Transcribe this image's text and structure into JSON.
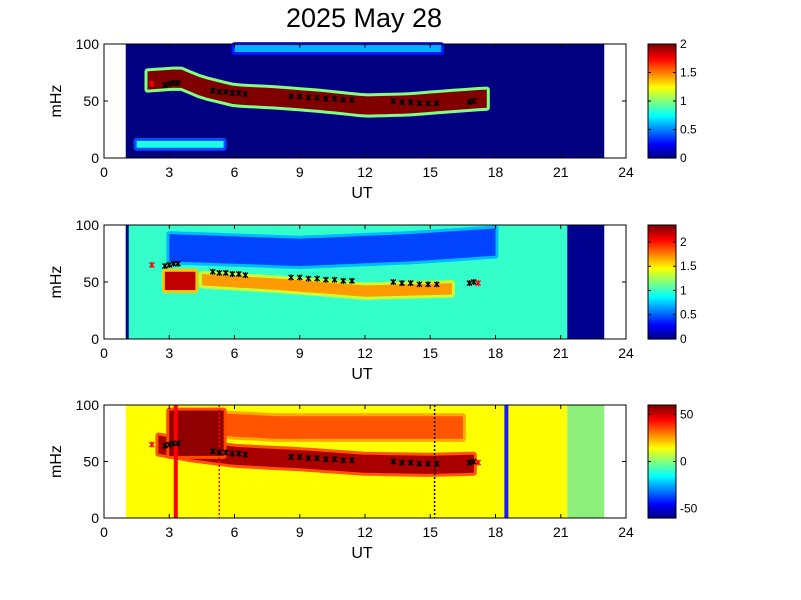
{
  "figure": {
    "title": "2025 May 28"
  },
  "colors": {
    "navy": "#00008f",
    "black_marker": "#000000",
    "red_marker": "#ff0000",
    "red_line": "#ff0000",
    "blue_line": "#1a1aff",
    "flat_green": "#8cf07a"
  },
  "chart_data": [
    {
      "type": "heatmap",
      "panel": 1,
      "xlabel": "UT",
      "ylabel": "mHz",
      "xlim": [
        0,
        24
      ],
      "ylim": [
        0,
        100
      ],
      "x_ticks": [
        0,
        3,
        6,
        9,
        12,
        15,
        18,
        21,
        24
      ],
      "y_ticks": [
        0,
        50,
        100
      ],
      "data_time_range": [
        1.0,
        23.0
      ],
      "colorbar": {
        "range": [
          0,
          2
        ],
        "ticks": [
          0,
          0.5,
          1,
          1.5,
          2
        ],
        "tick_labels": [
          "0",
          "0.5",
          "1",
          "1.5",
          "2"
        ],
        "colormap": "jet"
      },
      "background_value": 0,
      "features": [
        {
          "desc": "main band",
          "time_range": [
            2.0,
            17.6
          ],
          "freq_path": [
            [
              2.0,
              68
            ],
            [
              3.5,
              70
            ],
            [
              4.5,
              62
            ],
            [
              6.0,
              55
            ],
            [
              8.0,
              53
            ],
            [
              10.0,
              50
            ],
            [
              12.0,
              46
            ],
            [
              14.0,
              47
            ],
            [
              16.0,
              50
            ],
            [
              17.5,
              52
            ]
          ],
          "half_width_mHz": 8,
          "value": 2.0
        },
        {
          "desc": "top-edge patch",
          "time_range": [
            6.0,
            15.5
          ],
          "freq_path": [
            [
              6.0,
              96
            ],
            [
              15.5,
              96
            ]
          ],
          "half_width_mHz": 3,
          "value": 0.6
        },
        {
          "desc": "low patch",
          "time_range": [
            1.5,
            5.5
          ],
          "freq_path": [
            [
              1.5,
              12
            ],
            [
              5.5,
              12
            ]
          ],
          "half_width_mHz": 3,
          "value": 0.8
        }
      ],
      "markers": {
        "black": [
          [
            2.8,
            64
          ],
          [
            3.0,
            65
          ],
          [
            3.2,
            66
          ],
          [
            3.4,
            66
          ],
          [
            5.0,
            59
          ],
          [
            5.3,
            58
          ],
          [
            5.6,
            58
          ],
          [
            5.9,
            57
          ],
          [
            6.2,
            57
          ],
          [
            6.5,
            56
          ],
          [
            8.6,
            54
          ],
          [
            9.0,
            54
          ],
          [
            9.4,
            53
          ],
          [
            9.8,
            53
          ],
          [
            10.2,
            52
          ],
          [
            10.6,
            52
          ],
          [
            11.0,
            51
          ],
          [
            11.4,
            51
          ],
          [
            13.3,
            50
          ],
          [
            13.7,
            49
          ],
          [
            14.1,
            49
          ],
          [
            14.5,
            48
          ],
          [
            14.9,
            48
          ],
          [
            15.3,
            48
          ],
          [
            16.8,
            49
          ],
          [
            17.0,
            50
          ]
        ],
        "red": [
          [
            2.2,
            65
          ]
        ]
      }
    },
    {
      "type": "heatmap",
      "panel": 2,
      "xlabel": "UT",
      "ylabel": "mHz",
      "xlim": [
        0,
        24
      ],
      "ylim": [
        0,
        100
      ],
      "x_ticks": [
        0,
        3,
        6,
        9,
        12,
        15,
        18,
        21,
        24
      ],
      "y_ticks": [
        0,
        50,
        100
      ],
      "data_time_range": [
        1.0,
        21.3
      ],
      "colorbar": {
        "range": [
          0,
          2.35
        ],
        "ticks": [
          0,
          0.5,
          1,
          1.5,
          2
        ],
        "tick_labels": [
          "0",
          "0.5",
          "1",
          "1.5",
          "2"
        ],
        "colormap": "jet"
      },
      "background_value": 1.0,
      "features": [
        {
          "desc": "upper low-power region",
          "time_range": [
            3.0,
            18.0
          ],
          "freq_path": [
            [
              3.0,
              80
            ],
            [
              9.0,
              76
            ],
            [
              14.0,
              80
            ],
            [
              18.0,
              85
            ]
          ],
          "half_width_mHz": 12,
          "value": 0.45
        },
        {
          "desc": "hot spot",
          "time_range": [
            2.8,
            4.2
          ],
          "freq_path": [
            [
              2.8,
              51
            ],
            [
              4.2,
              51
            ]
          ],
          "half_width_mHz": 8,
          "value": 2.2
        },
        {
          "desc": "yellow band",
          "time_range": [
            4.5,
            16.0
          ],
          "freq_path": [
            [
              4.5,
              52
            ],
            [
              8.0,
              48
            ],
            [
              12.0,
              42
            ],
            [
              16.0,
              44
            ]
          ],
          "half_width_mHz": 5,
          "value": 1.7
        }
      ],
      "markers": {
        "black": [
          [
            2.8,
            64
          ],
          [
            3.0,
            65
          ],
          [
            3.2,
            66
          ],
          [
            3.4,
            66
          ],
          [
            5.0,
            59
          ],
          [
            5.3,
            58
          ],
          [
            5.6,
            58
          ],
          [
            5.9,
            57
          ],
          [
            6.2,
            57
          ],
          [
            6.5,
            56
          ],
          [
            8.6,
            54
          ],
          [
            9.0,
            54
          ],
          [
            9.4,
            53
          ],
          [
            9.8,
            53
          ],
          [
            10.2,
            52
          ],
          [
            10.6,
            52
          ],
          [
            11.0,
            51
          ],
          [
            11.4,
            51
          ],
          [
            13.3,
            50
          ],
          [
            13.7,
            49
          ],
          [
            14.1,
            49
          ],
          [
            14.5,
            48
          ],
          [
            14.9,
            48
          ],
          [
            15.3,
            48
          ],
          [
            16.8,
            49
          ],
          [
            17.0,
            50
          ]
        ],
        "red": [
          [
            2.2,
            65
          ],
          [
            17.2,
            49
          ]
        ]
      }
    },
    {
      "type": "heatmap",
      "panel": 3,
      "xlabel": "UT",
      "ylabel": "mHz",
      "xlim": [
        0,
        24
      ],
      "ylim": [
        0,
        100
      ],
      "x_ticks": [
        0,
        3,
        6,
        9,
        12,
        15,
        18,
        21,
        24
      ],
      "y_ticks": [
        0,
        50,
        100
      ],
      "data_time_range": [
        1.0,
        21.3
      ],
      "flat_time_range": [
        21.3,
        23.0
      ],
      "colorbar": {
        "range": [
          -60,
          60
        ],
        "ticks": [
          -50,
          0,
          50
        ],
        "tick_labels": [
          "-50",
          "0",
          "50"
        ],
        "colormap": "jet"
      },
      "background_value": 15,
      "features": [
        {
          "desc": "main band",
          "time_range": [
            2.5,
            17.0
          ],
          "freq_path": [
            [
              2.5,
              65
            ],
            [
              4.0,
              60
            ],
            [
              6.0,
              55
            ],
            [
              9.0,
              52
            ],
            [
              12.0,
              48
            ],
            [
              15.0,
              47
            ],
            [
              17.0,
              48
            ]
          ],
          "half_width_mHz": 8,
          "value": 55
        },
        {
          "desc": "upper red region",
          "time_range": [
            3.0,
            16.5
          ],
          "freq_path": [
            [
              3.0,
              85
            ],
            [
              8.0,
              80
            ],
            [
              16.5,
              80
            ]
          ],
          "half_width_mHz": 10,
          "value": 35
        },
        {
          "desc": "upper-left block",
          "time_range": [
            3.0,
            5.5
          ],
          "freq_path": [
            [
              3.0,
              75
            ],
            [
              5.5,
              75
            ]
          ],
          "half_width_mHz": 20,
          "value": 58
        }
      ],
      "vertical_lines": [
        {
          "x": 3.3,
          "color": "red_line",
          "style": "solid"
        },
        {
          "x": 5.3,
          "color": "red_line",
          "style": "dotted"
        },
        {
          "x": 15.2,
          "color": "black_marker",
          "style": "dotted"
        },
        {
          "x": 18.5,
          "color": "blue_line",
          "style": "solid"
        }
      ],
      "markers": {
        "black": [
          [
            2.8,
            64
          ],
          [
            3.0,
            65
          ],
          [
            3.2,
            66
          ],
          [
            3.4,
            66
          ],
          [
            5.0,
            59
          ],
          [
            5.3,
            58
          ],
          [
            5.6,
            58
          ],
          [
            5.9,
            57
          ],
          [
            6.2,
            57
          ],
          [
            6.5,
            56
          ],
          [
            8.6,
            54
          ],
          [
            9.0,
            54
          ],
          [
            9.4,
            53
          ],
          [
            9.8,
            53
          ],
          [
            10.2,
            52
          ],
          [
            10.6,
            52
          ],
          [
            11.0,
            51
          ],
          [
            11.4,
            51
          ],
          [
            13.3,
            50
          ],
          [
            13.7,
            49
          ],
          [
            14.1,
            49
          ],
          [
            14.5,
            48
          ],
          [
            14.9,
            48
          ],
          [
            15.3,
            48
          ],
          [
            16.8,
            49
          ],
          [
            17.0,
            50
          ]
        ],
        "red": [
          [
            2.2,
            65
          ],
          [
            17.2,
            49
          ]
        ]
      }
    }
  ]
}
